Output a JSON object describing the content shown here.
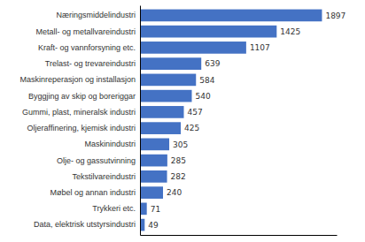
{
  "chart_data": {
    "type": "bar",
    "orientation": "horizontal",
    "categories": [
      "Data, elektrisk utstyrsindustri",
      "Trykkeri etc.",
      "Møbel og annan industri",
      "Tekstilvareindustri",
      "Olje- og gassutvinning",
      "Maskinindustri",
      "Oljeraffinering, kjemisk industri",
      "Gummi, plast, mineralsk industri",
      "Byggjing av skip og boreriggar",
      "Maskinreperasjon og installasjon",
      "Trelast- og trevareindustri",
      "Kraft- og vannforsyning etc.",
      "Metall- og metallvareindustri",
      "Næringsmiddelindustri"
    ],
    "values": [
      49,
      71,
      240,
      282,
      285,
      305,
      425,
      457,
      540,
      584,
      639,
      1107,
      1425,
      1897
    ],
    "color": "#4472C4",
    "xlim": [
      0,
      2050
    ],
    "data_labels": true,
    "tick_labels": "y"
  }
}
